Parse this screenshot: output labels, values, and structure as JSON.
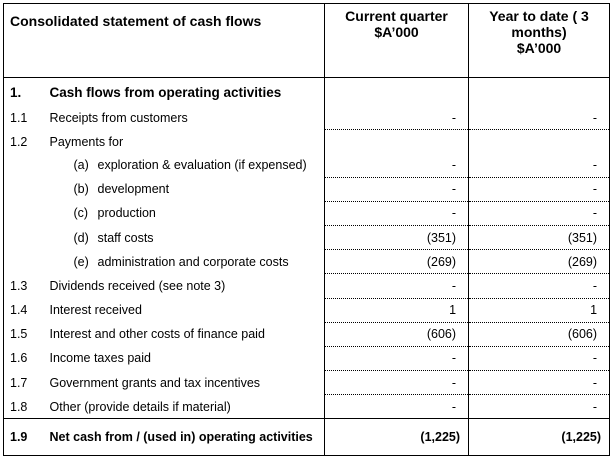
{
  "header": {
    "title": "Consolidated statement of cash flows",
    "col_current": "Current quarter\n$A’000",
    "col_ytd": "Year to date ( 3\nmonths)\n$A’000"
  },
  "section": {
    "num": "1.",
    "label": "Cash flows from operating activities"
  },
  "rows": [
    {
      "num": "1.1",
      "label": "Receipts from customers",
      "current": "-",
      "ytd": "-"
    },
    {
      "num": "1.2",
      "label": "Payments for",
      "current": "",
      "ytd": ""
    },
    {
      "num": "",
      "tag": "(a)",
      "label": "exploration & evaluation (if expensed)",
      "current": "-",
      "ytd": "-"
    },
    {
      "num": "",
      "tag": "(b)",
      "label": "development",
      "current": "-",
      "ytd": "-"
    },
    {
      "num": "",
      "tag": "(c)",
      "label": "production",
      "current": "-",
      "ytd": "-"
    },
    {
      "num": "",
      "tag": "(d)",
      "label": "staff costs",
      "current": "(351)",
      "ytd": "(351)"
    },
    {
      "num": "",
      "tag": "(e)",
      "label": "administration and corporate costs",
      "current": "(269)",
      "ytd": "(269)"
    },
    {
      "num": "1.3",
      "label": "Dividends received (see note 3)",
      "current": "-",
      "ytd": "-"
    },
    {
      "num": "1.4",
      "label": "Interest received",
      "current": "1",
      "ytd": "1"
    },
    {
      "num": "1.5",
      "label": "Interest and other costs of finance paid",
      "current": "(606)",
      "ytd": "(606)"
    },
    {
      "num": "1.6",
      "label": "Income taxes paid",
      "current": "-",
      "ytd": "-"
    },
    {
      "num": "1.7",
      "label": "Government grants and tax incentives",
      "current": "-",
      "ytd": "-"
    },
    {
      "num": "1.8",
      "label": "Other (provide details if material)",
      "current": "-",
      "ytd": "-"
    }
  ],
  "total": {
    "num": "1.9",
    "label": "Net cash from / (used in) operating activities",
    "current": "(1,225)",
    "ytd": "(1,225)"
  }
}
